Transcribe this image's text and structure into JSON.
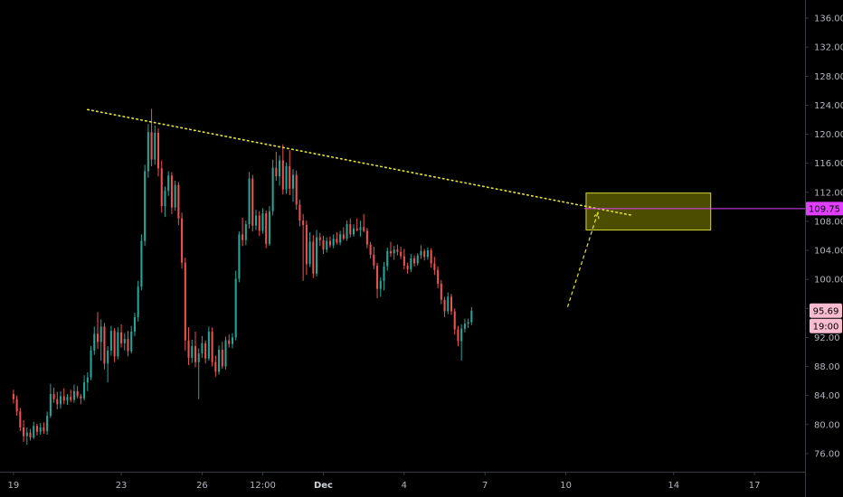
{
  "colors": {
    "background": "#000000",
    "up": "#26a69a",
    "down": "#ef5350",
    "axis_line": "#363a45",
    "axis_text": "#b2b5be",
    "trendline": "#e5e535",
    "zone_fill": "#5a5a00",
    "zone_stroke": "#d4d43a",
    "target_line": "#e040fb",
    "price_tag_bg": "#f8bbd0",
    "price_tag_text": "#000000"
  },
  "chart_data": {
    "type": "candlestick",
    "title": "",
    "xlabel": "",
    "ylabel": "",
    "ylim": [
      73.5,
      138.5
    ],
    "y_ticks": [
      "76.00",
      "80.00",
      "84.00",
      "88.00",
      "92.00",
      "96.00",
      "100.00",
      "104.00",
      "108.00",
      "112.00",
      "116.00",
      "120.00",
      "124.00",
      "128.00",
      "132.00",
      "136.00"
    ],
    "x_ticks": [
      {
        "label": "19",
        "t": 0,
        "bold": false
      },
      {
        "label": "23",
        "t": 32,
        "bold": false
      },
      {
        "label": "26",
        "t": 56,
        "bold": false
      },
      {
        "label": "12:00",
        "t": 74,
        "bold": false
      },
      {
        "label": "Dec",
        "t": 92,
        "bold": true
      },
      {
        "label": "4",
        "t": 116,
        "bold": false
      },
      {
        "label": "7",
        "t": 140,
        "bold": false
      },
      {
        "label": "10",
        "t": 164,
        "bold": false
      },
      {
        "label": "14",
        "t": 196,
        "bold": false
      },
      {
        "label": "17",
        "t": 220,
        "bold": false
      }
    ],
    "x_range_t": [
      -4,
      235
    ],
    "price_line": {
      "value": 109.75,
      "label": "109.75"
    },
    "last_price": {
      "value": 95.69,
      "label": "95.69",
      "time_label": "19:00"
    },
    "trendline": {
      "t1": 22,
      "v1": 123.4,
      "t2": 184,
      "v2": 108.8
    },
    "target_zone": {
      "t1": 170,
      "t2": 207,
      "v_low": 106.8,
      "v_high": 111.9
    },
    "projection": {
      "t1": 164.5,
      "v1": 96.2,
      "t2": 173.5,
      "v2": 109.2
    },
    "candles_ohlc": [
      [
        84.2,
        84.8,
        82.9,
        83.5
      ],
      [
        83.5,
        84.0,
        81.2,
        81.8
      ],
      [
        81.8,
        82.3,
        79.1,
        79.6
      ],
      [
        79.6,
        80.6,
        77.6,
        78.4
      ],
      [
        78.4,
        79.6,
        77.2,
        78.9
      ],
      [
        78.9,
        79.4,
        77.8,
        78.2
      ],
      [
        78.2,
        80.4,
        78.0,
        79.8
      ],
      [
        79.8,
        80.1,
        78.5,
        79.0
      ],
      [
        79.0,
        80.2,
        78.6,
        79.6
      ],
      [
        79.6,
        80.3,
        78.7,
        79.1
      ],
      [
        79.1,
        81.8,
        78.6,
        81.2
      ],
      [
        81.2,
        85.6,
        80.9,
        84.2
      ],
      [
        84.2,
        85.1,
        83.0,
        83.5
      ],
      [
        83.5,
        84.5,
        82.1,
        82.8
      ],
      [
        82.8,
        84.6,
        82.2,
        83.9
      ],
      [
        83.9,
        85.0,
        82.8,
        83.3
      ],
      [
        83.3,
        84.2,
        82.7,
        83.8
      ],
      [
        83.8,
        84.8,
        83.1,
        83.4
      ],
      [
        83.4,
        85.5,
        83.0,
        84.6
      ],
      [
        84.6,
        85.3,
        83.6,
        83.9
      ],
      [
        83.9,
        84.2,
        82.8,
        83.6
      ],
      [
        83.6,
        86.8,
        83.3,
        85.8
      ],
      [
        85.8,
        87.2,
        84.6,
        86.5
      ],
      [
        86.5,
        90.8,
        86.1,
        90.2
      ],
      [
        90.2,
        93.5,
        89.6,
        92.5
      ],
      [
        92.5,
        95.5,
        90.4,
        91.4
      ],
      [
        91.4,
        94.5,
        88.8,
        93.5
      ],
      [
        93.5,
        94.0,
        87.6,
        88.4
      ],
      [
        88.4,
        90.8,
        85.8,
        90.2
      ],
      [
        90.2,
        93.6,
        89.5,
        92.9
      ],
      [
        92.9,
        93.3,
        88.6,
        89.4
      ],
      [
        89.4,
        93.4,
        89.0,
        92.7
      ],
      [
        92.7,
        93.8,
        90.6,
        91.2
      ],
      [
        91.2,
        92.6,
        90.2,
        91.8
      ],
      [
        91.8,
        92.9,
        89.4,
        90.1
      ],
      [
        90.1,
        93.6,
        89.8,
        92.8
      ],
      [
        92.8,
        95.4,
        92.2,
        94.8
      ],
      [
        94.8,
        99.8,
        94.2,
        99.0
      ],
      [
        99.0,
        106.2,
        98.5,
        105.3
      ],
      [
        105.3,
        115.8,
        104.6,
        114.9
      ],
      [
        114.9,
        121.4,
        114.0,
        120.3
      ],
      [
        120.3,
        123.5,
        115.6,
        116.5
      ],
      [
        116.5,
        121.2,
        115.8,
        120.2
      ],
      [
        120.2,
        120.8,
        114.2,
        115.3
      ],
      [
        115.3,
        116.4,
        109.2,
        110.1
      ],
      [
        110.1,
        112.8,
        108.6,
        112.2
      ],
      [
        112.2,
        114.9,
        111.5,
        114.3
      ],
      [
        114.3,
        114.8,
        109.0,
        109.9
      ],
      [
        109.9,
        113.6,
        109.5,
        113.0
      ],
      [
        113.0,
        113.4,
        107.5,
        108.4
      ],
      [
        108.4,
        109.2,
        101.5,
        102.3
      ],
      [
        102.3,
        103.0,
        90.2,
        91.6
      ],
      [
        91.6,
        93.4,
        88.2,
        89.2
      ],
      [
        89.2,
        91.7,
        88.5,
        90.8
      ],
      [
        90.8,
        92.8,
        87.9,
        88.6
      ],
      [
        88.6,
        90.5,
        83.5,
        89.8
      ],
      [
        89.8,
        92.2,
        89.2,
        91.2
      ],
      [
        91.2,
        91.6,
        88.4,
        89.1
      ],
      [
        89.1,
        93.5,
        88.8,
        92.8
      ],
      [
        92.8,
        93.4,
        88.0,
        88.6
      ],
      [
        88.6,
        89.5,
        86.6,
        87.3
      ],
      [
        87.3,
        90.9,
        86.9,
        90.3
      ],
      [
        90.3,
        91.4,
        87.7,
        88.0
      ],
      [
        88.0,
        92.1,
        87.6,
        91.6
      ],
      [
        91.6,
        92.4,
        90.6,
        91.1
      ],
      [
        91.1,
        92.6,
        90.5,
        92.0
      ],
      [
        92.0,
        101.2,
        91.6,
        100.1
      ],
      [
        100.1,
        106.6,
        99.6,
        106.2
      ],
      [
        106.2,
        108.5,
        104.6,
        105.4
      ],
      [
        105.4,
        108.1,
        104.7,
        107.6
      ],
      [
        107.6,
        114.8,
        107.0,
        113.9
      ],
      [
        113.9,
        114.4,
        106.6,
        107.4
      ],
      [
        107.4,
        109.6,
        106.8,
        108.8
      ],
      [
        108.8,
        109.4,
        106.0,
        106.7
      ],
      [
        106.7,
        109.8,
        106.3,
        109.1
      ],
      [
        109.1,
        109.5,
        104.3,
        104.9
      ],
      [
        104.9,
        110.1,
        104.6,
        109.4
      ],
      [
        109.4,
        116.5,
        108.8,
        115.4
      ],
      [
        115.4,
        117.6,
        113.6,
        114.2
      ],
      [
        114.2,
        117.1,
        112.9,
        116.4
      ],
      [
        116.4,
        118.6,
        111.7,
        112.4
      ],
      [
        112.4,
        116.1,
        111.8,
        115.6
      ],
      [
        115.6,
        117.8,
        111.6,
        112.5
      ],
      [
        112.5,
        115.2,
        110.7,
        114.4
      ],
      [
        114.4,
        115.0,
        109.6,
        110.3
      ],
      [
        110.3,
        111.0,
        107.3,
        108.1
      ],
      [
        108.1,
        109.0,
        99.8,
        107.5
      ],
      [
        107.5,
        108.1,
        100.6,
        102.1
      ],
      [
        102.1,
        106.5,
        101.7,
        105.2
      ],
      [
        105.2,
        106.1,
        100.2,
        100.8
      ],
      [
        100.8,
        106.8,
        100.4,
        105.8
      ],
      [
        105.8,
        106.4,
        104.6,
        105.4
      ],
      [
        105.4,
        106.0,
        103.5,
        104.1
      ],
      [
        104.1,
        105.8,
        103.7,
        105.3
      ],
      [
        105.3,
        105.9,
        104.4,
        104.7
      ],
      [
        104.7,
        106.2,
        104.3,
        105.6
      ],
      [
        105.6,
        106.5,
        104.8,
        105.1
      ],
      [
        105.1,
        106.7,
        104.7,
        106.2
      ],
      [
        106.2,
        107.2,
        105.4,
        105.6
      ],
      [
        105.6,
        108.1,
        105.3,
        107.6
      ],
      [
        107.6,
        108.4,
        105.8,
        106.2
      ],
      [
        106.2,
        107.6,
        105.9,
        107.0
      ],
      [
        107.0,
        108.4,
        106.6,
        106.8
      ],
      [
        106.8,
        108.1,
        105.9,
        107.2
      ],
      [
        107.2,
        109.0,
        106.5,
        106.7
      ],
      [
        106.7,
        107.1,
        104.3,
        104.8
      ],
      [
        104.8,
        105.2,
        102.9,
        103.4
      ],
      [
        103.4,
        104.5,
        101.4,
        101.9
      ],
      [
        101.9,
        102.3,
        97.4,
        98.7
      ],
      [
        98.7,
        100.3,
        97.6,
        99.8
      ],
      [
        99.8,
        102.4,
        98.5,
        101.8
      ],
      [
        101.8,
        104.4,
        101.2,
        103.9
      ],
      [
        103.9,
        105.2,
        103.1,
        103.6
      ],
      [
        103.6,
        104.6,
        102.7,
        104.1
      ],
      [
        104.1,
        104.8,
        103.3,
        103.8
      ],
      [
        103.8,
        104.5,
        102.8,
        103.2
      ],
      [
        103.2,
        104.2,
        101.4,
        101.9
      ],
      [
        101.9,
        102.3,
        100.8,
        101.4
      ],
      [
        101.4,
        103.5,
        101.0,
        102.9
      ],
      [
        102.9,
        103.3,
        101.8,
        102.2
      ],
      [
        102.2,
        103.6,
        101.9,
        103.3
      ],
      [
        103.3,
        104.7,
        102.8,
        103.9
      ],
      [
        103.9,
        104.2,
        102.6,
        103.1
      ],
      [
        103.1,
        104.4,
        102.7,
        104.0
      ],
      [
        104.0,
        104.3,
        101.6,
        102.2
      ],
      [
        102.2,
        103.1,
        100.6,
        101.3
      ],
      [
        101.3,
        101.8,
        98.8,
        99.4
      ],
      [
        99.4,
        99.9,
        96.6,
        97.2
      ],
      [
        97.2,
        97.6,
        94.8,
        95.6
      ],
      [
        95.6,
        98.2,
        95.2,
        97.6
      ],
      [
        97.6,
        98.0,
        95.1,
        95.6
      ],
      [
        95.6,
        96.0,
        92.4,
        93.1
      ],
      [
        93.1,
        93.6,
        90.8,
        91.5
      ],
      [
        91.5,
        93.8,
        88.8,
        93.2
      ],
      [
        93.2,
        94.6,
        92.7,
        93.9
      ],
      [
        93.9,
        94.6,
        93.3,
        94.1
      ],
      [
        94.1,
        96.2,
        93.7,
        95.69
      ]
    ]
  }
}
